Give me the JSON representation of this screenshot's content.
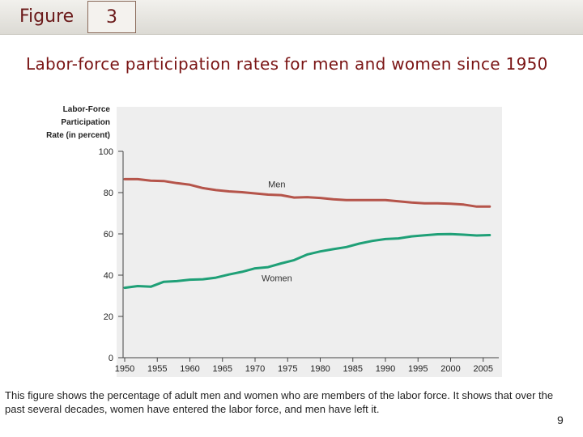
{
  "header": {
    "figure_label": "Figure",
    "figure_number": "3"
  },
  "title": "Labor-force participation rates for men and women since 1950",
  "caption": "This figure shows the percentage of adult men and women who are members of the labor force. It shows that over the past several decades, women have entered the labor force, and men have left it.",
  "page_number": "9",
  "colors": {
    "men": "#b5544a",
    "women": "#1fa077",
    "plot_background": "#eeeeee",
    "title": "#7a1414"
  },
  "chart_data": {
    "type": "line",
    "ylabel": [
      "Labor-Force",
      "Participation",
      "Rate (in percent)"
    ],
    "xlabel": "",
    "ylim": [
      0,
      100
    ],
    "yticks": [
      0,
      20,
      40,
      60,
      80,
      100
    ],
    "xlim": [
      1949,
      2008
    ],
    "xticks": [
      1950,
      1955,
      1960,
      1965,
      1970,
      1975,
      1980,
      1985,
      1990,
      1995,
      2000,
      2005
    ],
    "grid": false,
    "legend": "inline labels",
    "x": [
      1950,
      1952,
      1954,
      1956,
      1958,
      1960,
      1962,
      1964,
      1966,
      1968,
      1970,
      1972,
      1974,
      1976,
      1978,
      1980,
      1982,
      1984,
      1986,
      1988,
      1990,
      1992,
      1994,
      1996,
      1998,
      2000,
      2002,
      2004,
      2006
    ],
    "series": [
      {
        "name": "Men",
        "values": [
          86.5,
          86.5,
          85.8,
          85.6,
          84.6,
          83.8,
          82.2,
          81.2,
          80.6,
          80.2,
          79.6,
          79.0,
          78.8,
          77.6,
          77.8,
          77.4,
          76.8,
          76.4,
          76.4,
          76.4,
          76.4,
          75.8,
          75.2,
          74.8,
          74.8,
          74.6,
          74.2,
          73.2,
          73.2
        ]
      },
      {
        "name": "Women",
        "values": [
          33.9,
          34.7,
          34.4,
          36.8,
          37.1,
          37.8,
          38.0,
          38.8,
          40.3,
          41.6,
          43.3,
          43.9,
          45.7,
          47.3,
          50.0,
          51.5,
          52.6,
          53.6,
          55.3,
          56.6,
          57.5,
          57.8,
          58.8,
          59.3,
          59.8,
          59.9,
          59.6,
          59.2,
          59.4
        ]
      }
    ],
    "series_labels": [
      {
        "text": "Men",
        "x": 1972,
        "y": 82.5
      },
      {
        "text": "Women",
        "x": 1971,
        "y": 37.0
      }
    ]
  }
}
